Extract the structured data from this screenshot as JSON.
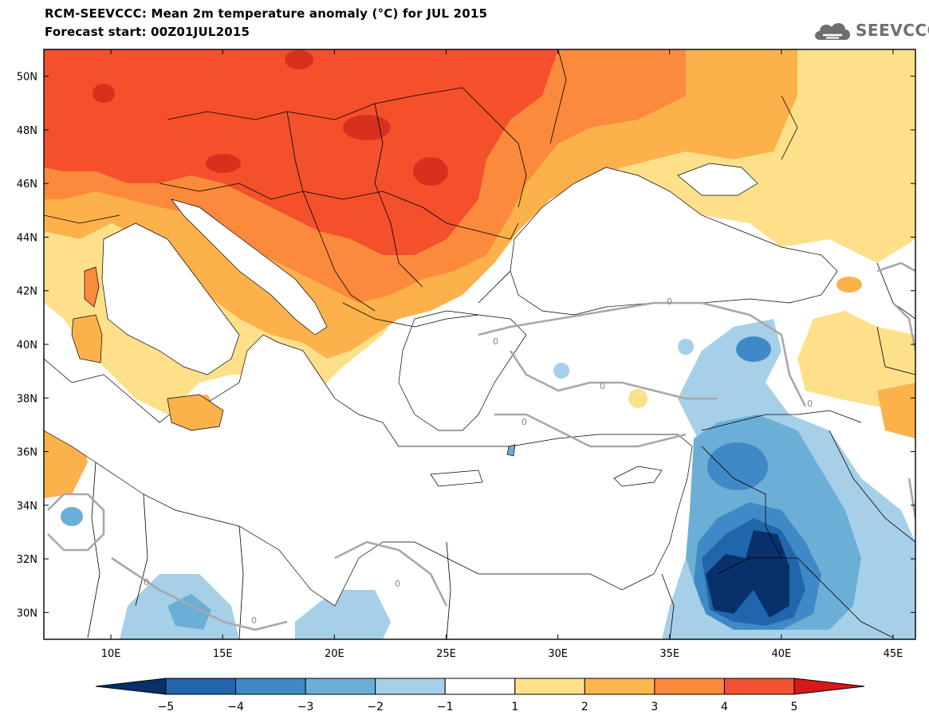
{
  "header": {
    "title": "RCM-SEEVCCC: Mean 2m temperature anomaly (°C) for JUL 2015",
    "subtitle": "Forecast start: 00Z01JUL2015",
    "logo_text": "SEEVCCC"
  },
  "map": {
    "lon_range": [
      7,
      46
    ],
    "lat_range": [
      29,
      51
    ],
    "lon_ticks": [
      "10E",
      "15E",
      "20E",
      "25E",
      "30E",
      "35E",
      "40E",
      "45E"
    ],
    "lat_ticks": [
      "50N",
      "48N",
      "46N",
      "44N",
      "42N",
      "40N",
      "38N",
      "36N",
      "34N",
      "32N",
      "30N"
    ],
    "contour_label": "0"
  },
  "colorbar": {
    "labels": [
      "-5",
      "-4",
      "-3",
      "-2",
      "-1",
      "1",
      "2",
      "3",
      "4",
      "5"
    ],
    "colors": [
      "#08306b",
      "#2166ac",
      "#3f8ac6",
      "#6baed6",
      "#a6cfe8",
      "#ffffff",
      "#fde28a",
      "#fdb74e",
      "#fb8a3c",
      "#f45130",
      "#d7191c"
    ]
  },
  "palette": {
    "warm5": "#f4502c",
    "warm4": "#fb8a3c",
    "warm3": "#fdb14a",
    "warm2": "#fee08b",
    "cool2": "#a6cfe8",
    "cool3": "#6baed6",
    "cool4": "#3f8ac6",
    "cool5": "#2166ac",
    "cool6": "#08306b",
    "contour": "#a8a8a8",
    "border": "#000000"
  }
}
